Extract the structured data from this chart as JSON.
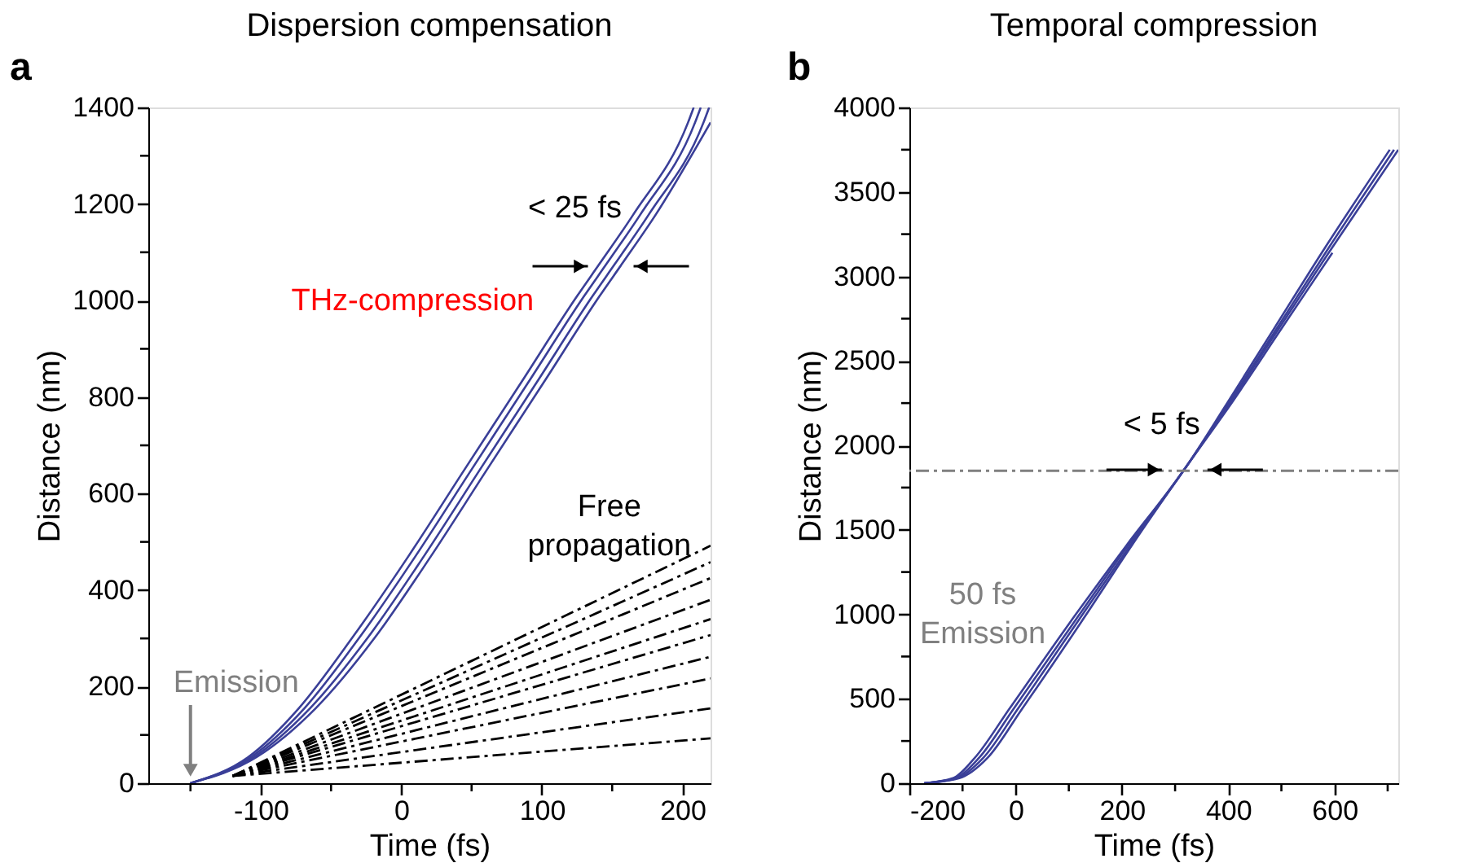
{
  "chart_data": [
    {
      "type": "line",
      "title": "Dispersion compensation",
      "xlabel": "Time (fs)",
      "ylabel": "Distance (nm)",
      "xlim": [
        -180,
        220
      ],
      "ylim": [
        0,
        1400
      ],
      "xticks": [
        {
          "value": -150,
          "label": null
        },
        {
          "value": -100,
          "label": "-100"
        },
        {
          "value": -50,
          "label": null
        },
        0,
        {
          "value": 50,
          "label": null
        },
        100,
        {
          "value": 150,
          "label": null
        },
        200
      ],
      "yticks": [
        0,
        {
          "value": 100,
          "label": null
        },
        200,
        {
          "value": 300,
          "label": null
        },
        400,
        {
          "value": 500,
          "label": null
        },
        600,
        {
          "value": 700,
          "label": null
        },
        800,
        {
          "value": 900,
          "label": null
        },
        1000,
        {
          "value": 1100,
          "label": null
        },
        1200,
        {
          "value": 1300,
          "label": null
        },
        1400
      ],
      "grid": false,
      "marker": "none",
      "series": [
        {
          "color": "#3a3f98",
          "x": [
            -150,
            -109,
            -73,
            -35,
            5,
            45,
            85,
            125,
            141,
            165,
            204,
            208
          ],
          "values": [
            0,
            54,
            155,
            301,
            470,
            650,
            829,
            1009,
            1076,
            1178,
            1369,
            1400
          ]
        },
        {
          "color": "#3a3f98",
          "x": [
            -150,
            -107,
            -69,
            -30,
            10,
            50,
            90,
            130,
            146,
            170,
            209,
            213
          ],
          "values": [
            0,
            54,
            155,
            301,
            470,
            650,
            829,
            1009,
            1076,
            1178,
            1369,
            1400
          ]
        },
        {
          "color": "#3a3f98",
          "x": [
            -150,
            -105,
            -65,
            -24,
            16,
            56,
            96,
            136,
            152,
            176,
            215,
            219
          ],
          "values": [
            0,
            54,
            155,
            301,
            470,
            650,
            829,
            1009,
            1076,
            1178,
            1369,
            1400
          ]
        },
        {
          "color": "#3a3f98",
          "x": [
            -150,
            -103,
            -61,
            -19,
            21,
            61,
            101,
            141,
            157,
            181,
            220
          ],
          "values": [
            0,
            54,
            155,
            301,
            470,
            650,
            829,
            1009,
            1076,
            1178,
            1369
          ]
        },
        {
          "color": "#000000",
          "line_style": "dashed",
          "x": [
            -120,
            220
          ],
          "values": [
            15,
            492
          ]
        },
        {
          "color": "#000000",
          "line_style": "dashed",
          "x": [
            -120,
            220
          ],
          "values": [
            15,
            458
          ]
        },
        {
          "color": "#000000",
          "line_style": "dashed",
          "x": [
            -120,
            220
          ],
          "values": [
            15,
            425
          ]
        },
        {
          "color": "#000000",
          "line_style": "dashed",
          "x": [
            -120,
            220
          ],
          "values": [
            15,
            380
          ]
        },
        {
          "color": "#000000",
          "line_style": "dashed",
          "x": [
            -120,
            220
          ],
          "values": [
            15,
            340
          ]
        },
        {
          "color": "#000000",
          "line_style": "dashed",
          "x": [
            -120,
            220
          ],
          "values": [
            15,
            307
          ]
        },
        {
          "color": "#000000",
          "line_style": "dashed",
          "x": [
            -120,
            220
          ],
          "values": [
            15,
            262
          ]
        },
        {
          "color": "#000000",
          "line_style": "dashed",
          "x": [
            -120,
            220
          ],
          "values": [
            15,
            217
          ]
        },
        {
          "color": "#000000",
          "line_style": "dashed",
          "x": [
            -120,
            220
          ],
          "values": [
            15,
            155
          ]
        },
        {
          "color": "#000000",
          "line_style": "dashed",
          "x": [
            -120,
            220
          ],
          "values": [
            15,
            93
          ]
        }
      ],
      "annotations": [
        "a",
        {
          "text": "< 25 fs",
          "x": 149,
          "y": 1071
        },
        "THz-compression",
        "Free\npropagation",
        {
          "text": "Emission",
          "x": -150,
          "y": 0
        }
      ]
    },
    {
      "type": "line",
      "title": "Temporal compression",
      "xlabel": "Time (fs)",
      "ylabel": "Distance (nm)",
      "xlim": [
        -200,
        720
      ],
      "ylim": [
        0,
        4000
      ],
      "xticks": [
        -200,
        {
          "value": -100,
          "label": null
        },
        0,
        {
          "value": 100,
          "label": null
        },
        200,
        {
          "value": 300,
          "label": null
        },
        400,
        {
          "value": 500,
          "label": null
        },
        600,
        {
          "value": 700,
          "label": null
        }
      ],
      "yticks": [
        0,
        {
          "value": 250,
          "label": null
        },
        500,
        {
          "value": 750,
          "label": null
        },
        1000,
        {
          "value": 1250,
          "label": null
        },
        1500,
        {
          "value": 1750,
          "label": null
        },
        2000,
        {
          "value": 2250,
          "label": null
        },
        2500,
        {
          "value": 2750,
          "label": null
        },
        3000,
        {
          "value": 3250,
          "label": null
        },
        3500,
        {
          "value": 3750,
          "label": null
        },
        4000
      ],
      "grid": false,
      "marker": "none",
      "series": [
        {
          "color": "#3a3f98",
          "x": [
            -172,
            -118,
            -77,
            -12,
            111,
            209,
            318,
            396,
            486,
            576,
            704
          ],
          "values": [
            0,
            30,
            150,
            440,
            990,
            1410,
            1860,
            2240,
            2690,
            3140,
            3750
          ]
        },
        {
          "color": "#3a3f98",
          "x": [
            -172,
            -114,
            -69,
            -4,
            118,
            212,
            318,
            399,
            491,
            583,
            712
          ],
          "values": [
            0,
            30,
            150,
            440,
            990,
            1410,
            1860,
            2240,
            2690,
            3140,
            3750
          ]
        },
        {
          "color": "#3a3f98",
          "x": [
            -172,
            -110,
            -61,
            4,
            124,
            216,
            318,
            401,
            495,
            589,
            720
          ],
          "values": [
            0,
            30,
            150,
            440,
            990,
            1410,
            1860,
            2240,
            2690,
            3140,
            3750
          ]
        },
        {
          "color": "#3a3f98",
          "x": [
            -172,
            -106,
            -53,
            12,
            131,
            219,
            318,
            404,
            500,
            596
          ],
          "values": [
            0,
            30,
            150,
            440,
            990,
            1410,
            1860,
            2240,
            2690,
            3140
          ]
        }
      ],
      "ref_lines": [
        {
          "axis": "y",
          "value": 1850,
          "color": "#808080",
          "line_style": "dashed"
        }
      ],
      "annotations": [
        "b",
        {
          "text": "< 5 fs",
          "x": 318,
          "y": 1856
        },
        "50 fs\nEmission"
      ]
    }
  ]
}
